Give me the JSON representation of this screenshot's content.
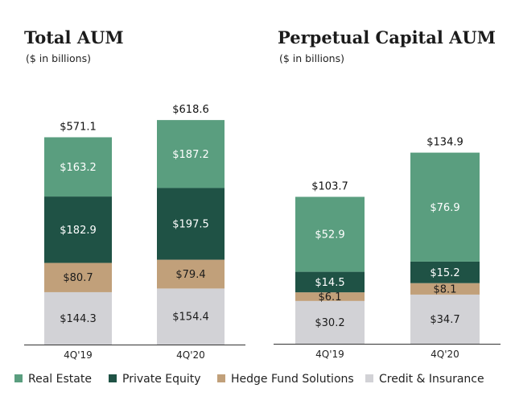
{
  "colors": {
    "real_estate": "#5a9e7f",
    "private_equity": "#1f5245",
    "hedge_fund": "#c1a07a",
    "credit_insurance": "#d2d2d6",
    "axis": "#333333"
  },
  "legend": [
    {
      "label": "Real Estate",
      "color_key": "real_estate"
    },
    {
      "label": "Private Equity",
      "color_key": "private_equity"
    },
    {
      "label": "Hedge Fund Solutions",
      "color_key": "hedge_fund"
    },
    {
      "label": "Credit & Insurance",
      "color_key": "credit_insurance"
    }
  ],
  "chart_data": [
    {
      "type": "bar",
      "stacked": true,
      "title": "Total AUM",
      "subtitle": "($ in billions)",
      "categories": [
        "4Q'19",
        "4Q'20"
      ],
      "totals": [
        "$571.1",
        "$618.6"
      ],
      "series": [
        {
          "name": "Credit & Insurance",
          "color_key": "credit_insurance",
          "values": [
            144.3,
            154.4
          ],
          "labels": [
            "$144.3",
            "$154.4"
          ]
        },
        {
          "name": "Hedge Fund Solutions",
          "color_key": "hedge_fund",
          "values": [
            80.7,
            79.4
          ],
          "labels": [
            "$80.7",
            "$79.4"
          ]
        },
        {
          "name": "Private Equity",
          "color_key": "private_equity",
          "values": [
            182.9,
            197.5
          ],
          "labels": [
            "$182.9",
            "$197.5"
          ]
        },
        {
          "name": "Real Estate",
          "color_key": "real_estate",
          "values": [
            163.2,
            187.2
          ],
          "labels": [
            "$163.2",
            "$187.2"
          ]
        }
      ]
    },
    {
      "type": "bar",
      "stacked": true,
      "title": "Perpetual Capital AUM",
      "subtitle": "($ in billions)",
      "categories": [
        "4Q'19",
        "4Q'20"
      ],
      "totals": [
        "$103.7",
        "$134.9"
      ],
      "series": [
        {
          "name": "Credit & Insurance",
          "color_key": "credit_insurance",
          "values": [
            30.2,
            34.7
          ],
          "labels": [
            "$30.2",
            "$34.7"
          ]
        },
        {
          "name": "Hedge Fund Solutions",
          "color_key": "hedge_fund",
          "values": [
            6.1,
            8.1
          ],
          "labels": [
            "$6.1",
            "$8.1"
          ]
        },
        {
          "name": "Private Equity",
          "color_key": "private_equity",
          "values": [
            14.5,
            15.2
          ],
          "labels": [
            "$14.5",
            "$15.2"
          ]
        },
        {
          "name": "Real Estate",
          "color_key": "real_estate",
          "values": [
            52.9,
            76.9
          ],
          "labels": [
            "$52.9",
            "$76.9"
          ]
        }
      ]
    }
  ]
}
